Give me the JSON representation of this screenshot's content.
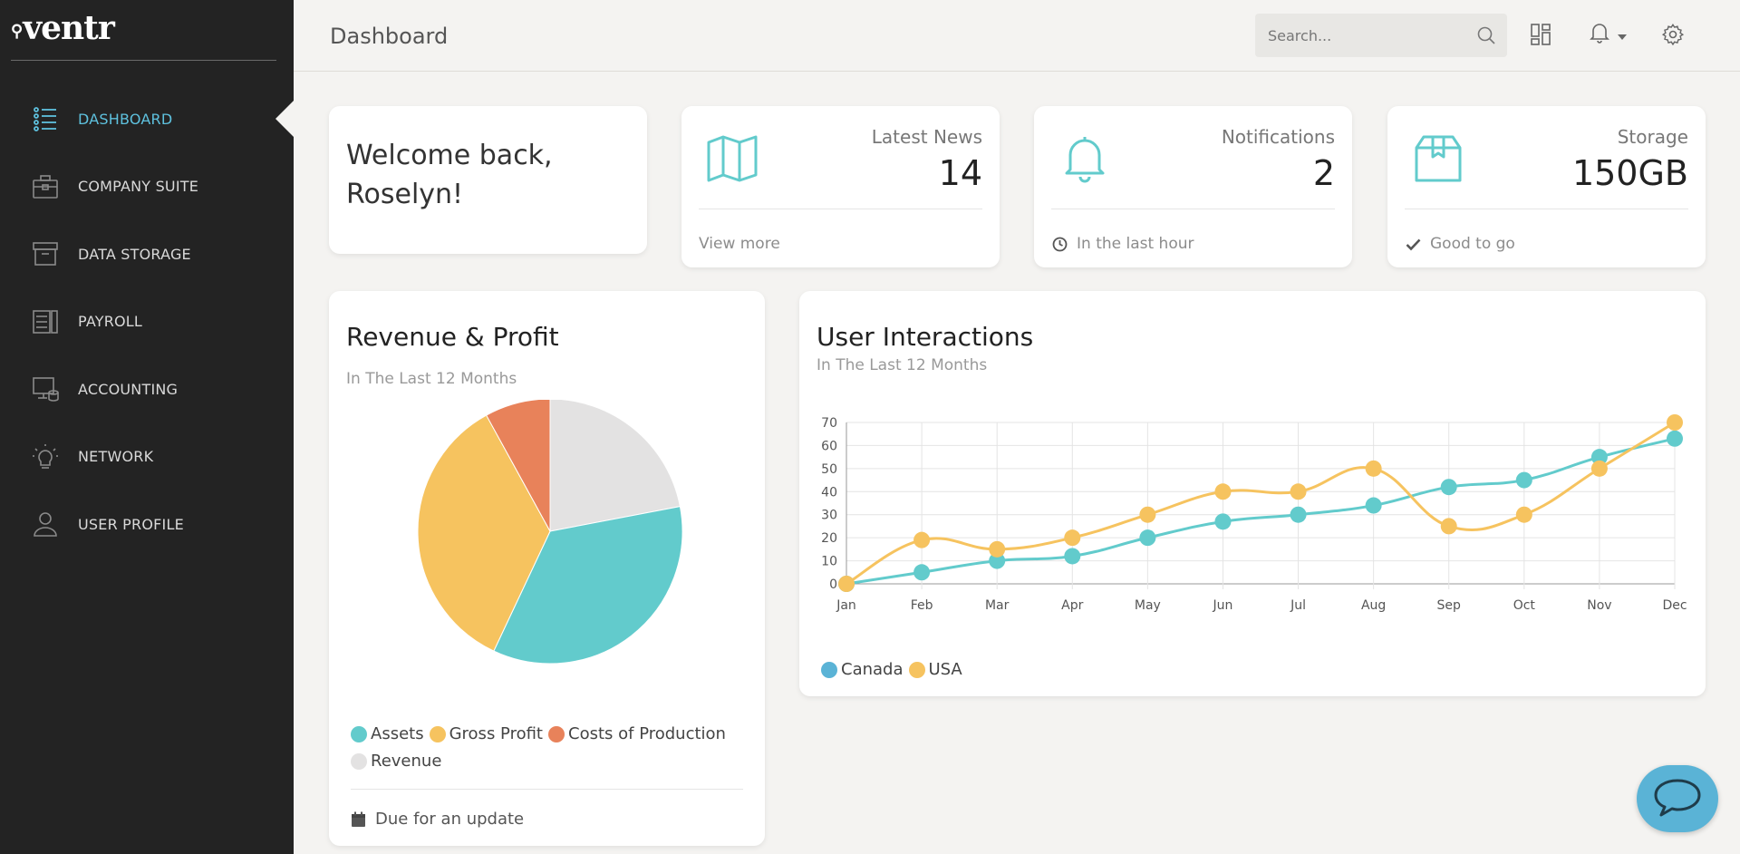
{
  "app": {
    "logo": "ventr"
  },
  "sidebar": {
    "items": [
      {
        "label": "DASHBOARD",
        "icon": "list-icon",
        "active": true
      },
      {
        "label": "COMPANY SUITE",
        "icon": "briefcase-icon"
      },
      {
        "label": "DATA STORAGE",
        "icon": "archive-icon"
      },
      {
        "label": "PAYROLL",
        "icon": "payroll-icon"
      },
      {
        "label": "ACCOUNTING",
        "icon": "accounting-icon"
      },
      {
        "label": "NETWORK",
        "icon": "lightbulb-icon"
      },
      {
        "label": "USER PROFILE",
        "icon": "user-icon"
      }
    ]
  },
  "header": {
    "title": "Dashboard",
    "search_placeholder": "Search..."
  },
  "welcome": {
    "text": "Welcome back, Roselyn!"
  },
  "stats": [
    {
      "label": "Latest News",
      "value": "14",
      "footer": "View more",
      "icon": "map-icon",
      "footer_icon": ""
    },
    {
      "label": "Notifications",
      "value": "2",
      "footer": "In the last hour",
      "icon": "bell-icon",
      "footer_icon": "clock-icon"
    },
    {
      "label": "Storage",
      "value": "150GB",
      "footer": "Good to go",
      "icon": "box-icon",
      "footer_icon": "check-icon"
    }
  ],
  "revenue": {
    "title": "Revenue & Profit",
    "subtitle": "In The Last 12 Months",
    "footer": "Due for an update"
  },
  "interactions": {
    "title": "User Interactions",
    "subtitle": "In The Last 12 Months"
  },
  "colors": {
    "accent": "#5ec1de",
    "teal": "#62cbcc",
    "yellow": "#f6c35f",
    "orange": "#e8825a",
    "grey": "#e3e2e2",
    "sidebar_bg": "#232323"
  },
  "chart_data": [
    {
      "type": "pie",
      "categories": [
        "Assets",
        "Gross Profit",
        "Costs of Production",
        "Revenue"
      ],
      "values": [
        35,
        35,
        8,
        22
      ],
      "colors": [
        "#62cbcc",
        "#f6c35f",
        "#e8825a",
        "#e3e2e2"
      ],
      "legend": "bottom"
    },
    {
      "type": "line",
      "x": [
        "Jan",
        "Feb",
        "Mar",
        "Apr",
        "May",
        "Jun",
        "Jul",
        "Aug",
        "Sep",
        "Oct",
        "Nov",
        "Dec"
      ],
      "series": [
        {
          "name": "Canada",
          "values": [
            0,
            5,
            10,
            12,
            20,
            27,
            30,
            34,
            42,
            45,
            55,
            63
          ],
          "color": "#62cbcc"
        },
        {
          "name": "USA",
          "values": [
            0,
            19,
            15,
            20,
            30,
            40,
            40,
            50,
            25,
            30,
            50,
            70
          ],
          "color": "#f6c35f"
        }
      ],
      "ylim": [
        0,
        70
      ],
      "yticks": [
        0,
        10,
        20,
        30,
        40,
        50,
        60,
        70
      ],
      "grid": true,
      "legend": "bottom-left"
    }
  ]
}
